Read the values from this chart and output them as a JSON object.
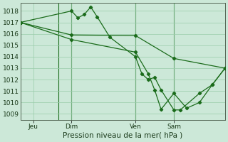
{
  "title": "Pression niveau de la mer( hPa )",
  "bg_color": "#cce8d8",
  "grid_color": "#99ccaa",
  "line_color": "#1a6b1a",
  "ylim": [
    1008.5,
    1018.7
  ],
  "yticks": [
    1009,
    1010,
    1011,
    1012,
    1013,
    1014,
    1015,
    1016,
    1017,
    1018
  ],
  "xlim": [
    0,
    96
  ],
  "xtick_labels": [
    "Jeu",
    "Dim",
    "Ven",
    "Sam"
  ],
  "xtick_positions": [
    6,
    24,
    54,
    72
  ],
  "vlines_x": [
    18,
    24,
    54,
    72
  ],
  "line1_x": [
    0,
    24,
    27,
    30,
    33,
    36,
    42,
    54,
    57,
    60,
    63,
    66,
    72,
    75,
    84,
    90,
    96
  ],
  "line1_y": [
    1017.0,
    1018.0,
    1017.4,
    1017.7,
    1018.35,
    1017.5,
    1015.7,
    1014.0,
    1012.5,
    1012.0,
    1012.2,
    1011.1,
    1009.35,
    1009.35,
    1010.8,
    1011.55,
    1013.0
  ],
  "line2_x": [
    0,
    24,
    54,
    72,
    96
  ],
  "line2_y": [
    1017.0,
    1015.9,
    1015.85,
    1013.85,
    1013.0
  ],
  "line3_x": [
    0,
    24,
    54,
    60,
    63,
    66,
    72,
    78,
    84,
    90,
    96
  ],
  "line3_y": [
    1017.0,
    1015.5,
    1014.4,
    1012.5,
    1011.1,
    1009.4,
    1010.8,
    1009.5,
    1010.0,
    1011.55,
    1013.0
  ]
}
